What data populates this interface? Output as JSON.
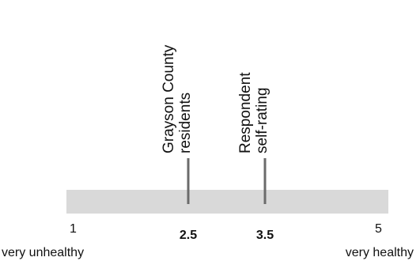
{
  "chart_data": {
    "type": "scale",
    "xlim": [
      1,
      5
    ],
    "min_label": "1",
    "max_label": "5",
    "min_description": "very unhealthy",
    "max_description": "very healthy",
    "markers": [
      {
        "value": 2.5,
        "value_label": "2.5",
        "label_lines": [
          "Grayson County",
          "residents"
        ]
      },
      {
        "value": 3.5,
        "value_label": "3.5",
        "label_lines": [
          "Respondent",
          "self-rating"
        ]
      }
    ],
    "colors": {
      "bar": "#d9d9d9",
      "marker": "#6b6b6b",
      "text": "#111111"
    }
  }
}
